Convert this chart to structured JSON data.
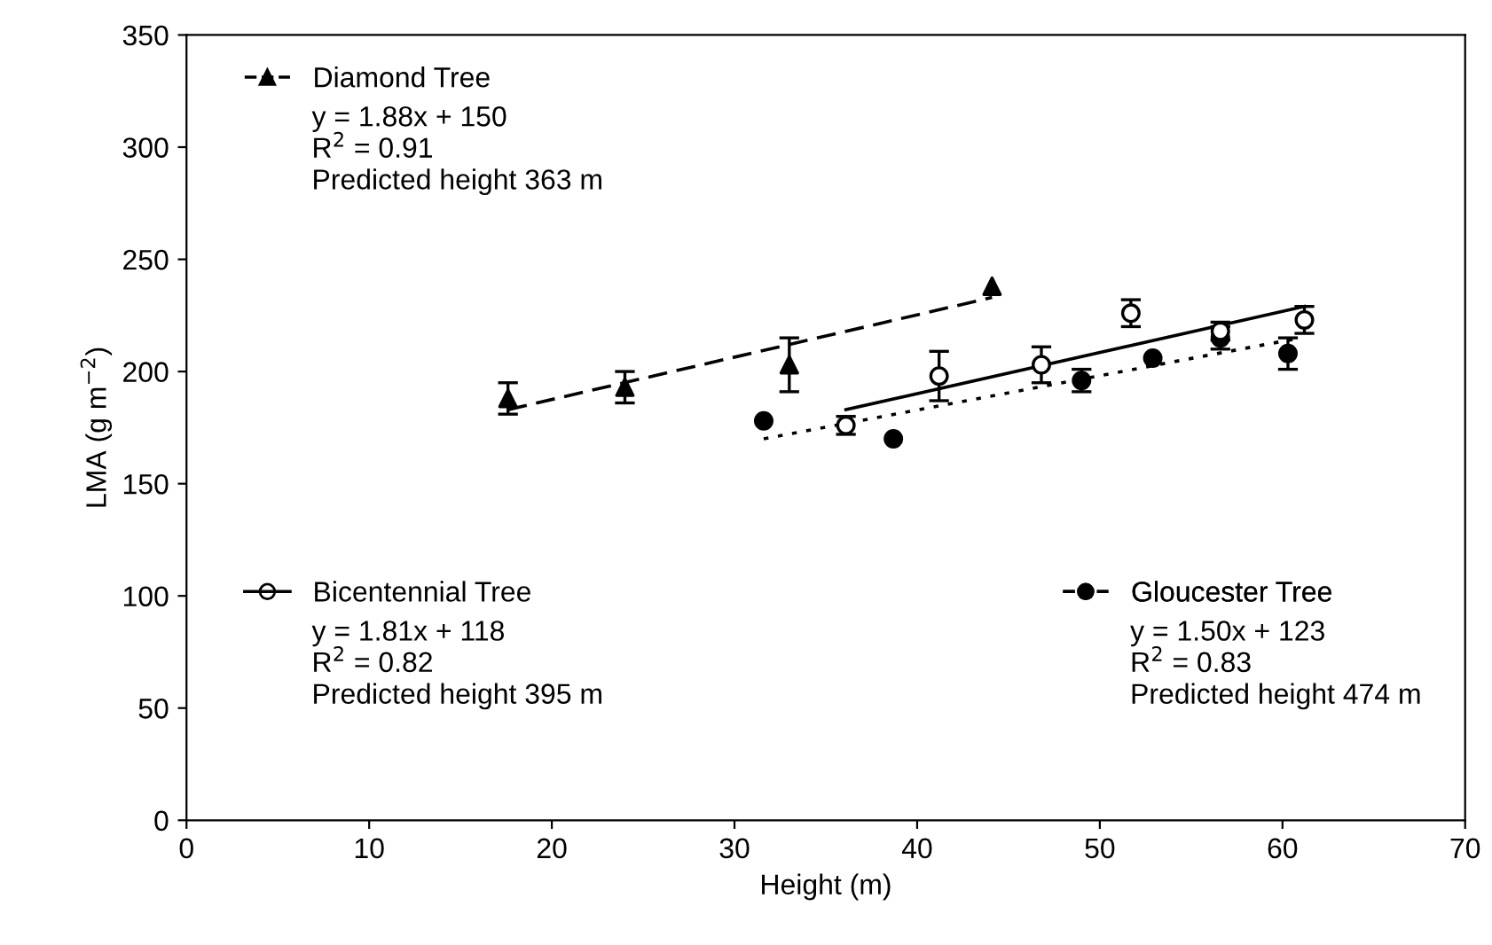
{
  "chart_data": {
    "type": "scatter",
    "xlabel": "Height (m)",
    "ylabel": "LMA (g m$^{−2}$)",
    "xlim": [
      0,
      70
    ],
    "xticks": [
      0,
      10,
      20,
      30,
      40,
      50,
      60,
      70
    ],
    "ylim": [
      0,
      350
    ],
    "yticks": [
      0,
      50,
      100,
      150,
      200,
      250,
      300,
      350
    ],
    "grid": false,
    "legend": [
      "top left",
      "bottom left",
      "bottom right"
    ],
    "series": [
      {
        "name": "Diamond Tree",
        "color": "#000000",
        "marker": "triangle",
        "x": [
          17.6,
          24,
          33,
          44.1
        ],
        "values": [
          188,
          193,
          203,
          238
        ],
        "errors": [
          7,
          7,
          12,
          null
        ]
      },
      {
        "name": "Bicentennial Tree",
        "color": "#ffffff",
        "marker": "circle",
        "x": [
          36.1,
          41.2,
          46.8,
          51.7,
          56.6,
          61.2
        ],
        "values": [
          176,
          198,
          203,
          226,
          218,
          223
        ],
        "errors": [
          4,
          11,
          8,
          6,
          4,
          6
        ]
      },
      {
        "name": "Gloucester Tree",
        "color": "#000000",
        "marker": "circle",
        "x": [
          31.6,
          38.7,
          49,
          52.9,
          56.6,
          60.3
        ],
        "values": [
          178,
          170,
          196,
          206,
          215,
          208
        ],
        "errors": [
          null,
          null,
          5,
          null,
          5,
          7
        ]
      },
      {
        "type": "line",
        "color": "#000000",
        "line_style": "dashed",
        "x": [
          17.6,
          44.1
        ],
        "values": [
          183,
          233
        ]
      },
      {
        "type": "line",
        "color": "#000000",
        "line_style": "solid",
        "x": [
          36.1,
          61.2
        ],
        "values": [
          183,
          229
        ]
      },
      {
        "type": "line",
        "color": "#000000",
        "line_style": "dotted",
        "x": [
          31.6,
          61
        ],
        "values": [
          170,
          215
        ]
      }
    ],
    "annotations": [
      "y = 1.88x + 150\nR$^{2}$ = 0.91\nPredicted height 363 m",
      "y = 1.81x + 118\nR$^{2}$ = 0.82\nPredicted height 395 m",
      "y = 1.50x + 123\nR$^{2}$ = 0.83\nPredicted height 474 m"
    ]
  }
}
